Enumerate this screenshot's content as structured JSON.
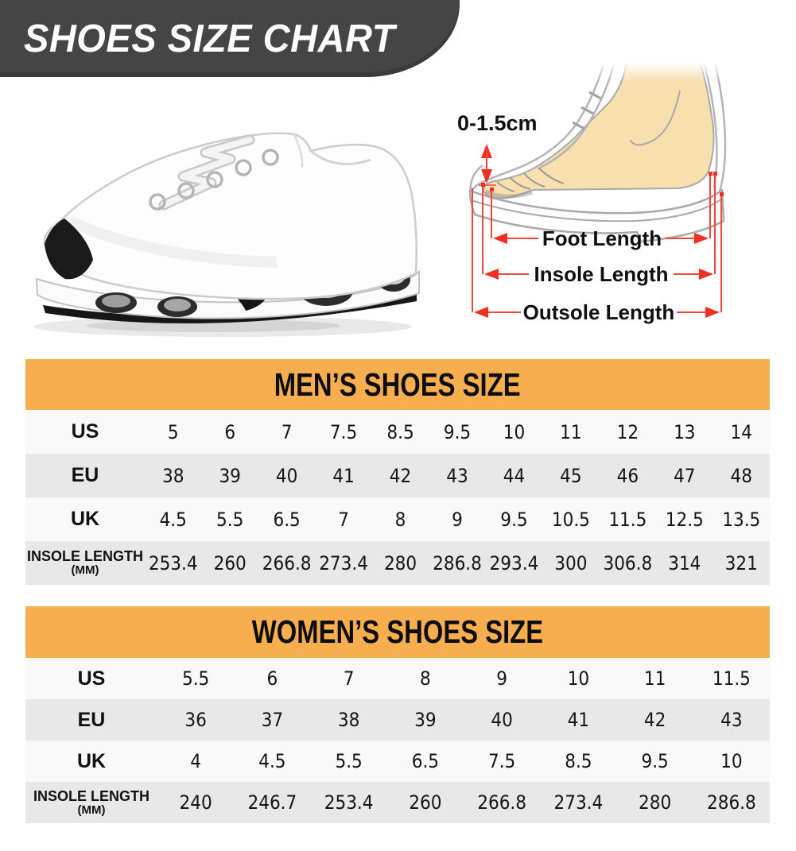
{
  "banner": {
    "title": "SHOES SIZE CHART",
    "bg_color": "#454545",
    "text_color": "#ffffff"
  },
  "diagram": {
    "toe_gap_label": "0-1.5cm",
    "foot_length_label": "Foot Length",
    "insole_length_label": "Insole Length",
    "outsole_length_label": "Outsole Length",
    "arrow_color": "#ee2f22",
    "foot_skin_color": "#f7dfae",
    "outline_color": "#acacac"
  },
  "colors": {
    "accent_orange": "#f6ae4f",
    "row_gray": "#e9e8e9",
    "row_white": "#faf9fa",
    "banner_gray": "#454545",
    "text_black": "#111111"
  },
  "tables": [
    {
      "title": "MEN’S SHOES SIZE",
      "rows": [
        {
          "label": "US",
          "values": [
            "5",
            "6",
            "7",
            "7.5",
            "8.5",
            "9.5",
            "10",
            "11",
            "12",
            "13",
            "14"
          ]
        },
        {
          "label": "EU",
          "values": [
            "38",
            "39",
            "40",
            "41",
            "42",
            "43",
            "44",
            "45",
            "46",
            "47",
            "48"
          ]
        },
        {
          "label": "UK",
          "values": [
            "4.5",
            "5.5",
            "6.5",
            "7",
            "8",
            "9",
            "9.5",
            "10.5",
            "11.5",
            "12.5",
            "13.5"
          ]
        },
        {
          "label": "INSOLE LENGTH",
          "label2": "(MM)",
          "values": [
            "253.4",
            "260",
            "266.8",
            "273.4",
            "280",
            "286.8",
            "293.4",
            "300",
            "306.8",
            "314",
            "321"
          ]
        }
      ]
    },
    {
      "title": "WOMEN’S SHOES SIZE",
      "rows": [
        {
          "label": "US",
          "values": [
            "5.5",
            "6",
            "7",
            "8",
            "9",
            "10",
            "11",
            "11.5"
          ]
        },
        {
          "label": "EU",
          "values": [
            "36",
            "37",
            "38",
            "39",
            "40",
            "41",
            "42",
            "43"
          ]
        },
        {
          "label": "UK",
          "values": [
            "4",
            "4.5",
            "5.5",
            "6.5",
            "7.5",
            "8.5",
            "9.5",
            "10"
          ]
        },
        {
          "label": "INSOLE LENGTH",
          "label2": "(MM)",
          "values": [
            "240",
            "246.7",
            "253.4",
            "260",
            "266.8",
            "273.4",
            "280",
            "286.8"
          ]
        }
      ]
    }
  ]
}
